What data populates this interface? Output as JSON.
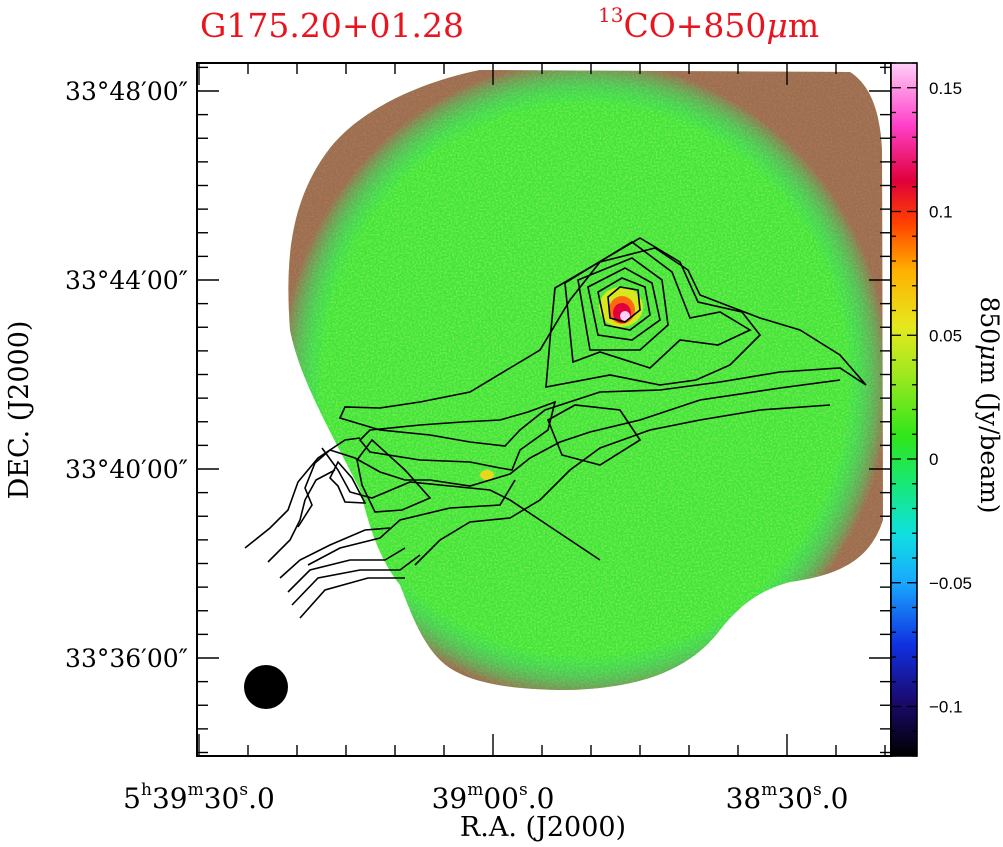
{
  "title": {
    "source": "G175.20+01.28",
    "tracer_super": "13",
    "tracer": "CO+850",
    "mu": "μ",
    "unit": "m"
  },
  "axes": {
    "xlabel": "R.A.  (J2000)",
    "ylabel": "DEC.  (J2000)",
    "colorbar_label_pre": "850",
    "colorbar_label_mu": "μ",
    "colorbar_label_post": "m  (Jy/beam)"
  },
  "chart_data": {
    "type": "heatmap",
    "title": "G175.20+01.28   13CO+850μm",
    "xlabel": "R.A.  (J2000)",
    "ylabel": "DEC.  (J2000)",
    "x_ticks": [
      {
        "h": "5",
        "hu": "h",
        "m": "39",
        "mu": "m",
        "s": "30",
        "su": "s",
        "f": ".0",
        "ra_sec": 30
      },
      {
        "h": "",
        "hu": "",
        "m": "39",
        "mu": "m",
        "s": "00",
        "su": "s",
        "f": ".0",
        "ra_sec": 0
      },
      {
        "h": "",
        "hu": "",
        "m": "38",
        "mu": "m",
        "s": "30",
        "su": "s",
        "f": ".0",
        "ra_sec": -30
      }
    ],
    "y_ticks": [
      {
        "label": "33°48′00″",
        "dec_arcmin": 8
      },
      {
        "label": "33°44′00″",
        "dec_arcmin": 4
      },
      {
        "label": "33°40′00″",
        "dec_arcmin": 0
      },
      {
        "label": "33°36′00″",
        "dec_arcmin": -4
      }
    ],
    "colorbar": {
      "label": "850μm  (Jy/beam)",
      "range": [
        -0.12,
        0.16
      ],
      "ticks": [
        {
          "label": "0.15",
          "value": 0.15
        },
        {
          "label": "0.1",
          "value": 0.1
        },
        {
          "label": "0.05",
          "value": 0.05
        },
        {
          "label": "0",
          "value": 0
        },
        {
          "label": "−0.05",
          "value": -0.05
        },
        {
          "label": "−0.1",
          "value": -0.1
        }
      ],
      "colors": [
        "#000000",
        "#1a0a70",
        "#1030e0",
        "#19a8ff",
        "#10e0e0",
        "#16e87a",
        "#2fe61c",
        "#9ee81e",
        "#e6e81e",
        "#ffb000",
        "#ff4000",
        "#e0003a",
        "#ff40c8",
        "#ffd0f8"
      ]
    },
    "peak": {
      "value": 0.16,
      "label": "850μm peak near 33°43′10″"
    },
    "contours": "13CO integrated intensity (black contours)",
    "beam": "filled circle, lower left"
  }
}
